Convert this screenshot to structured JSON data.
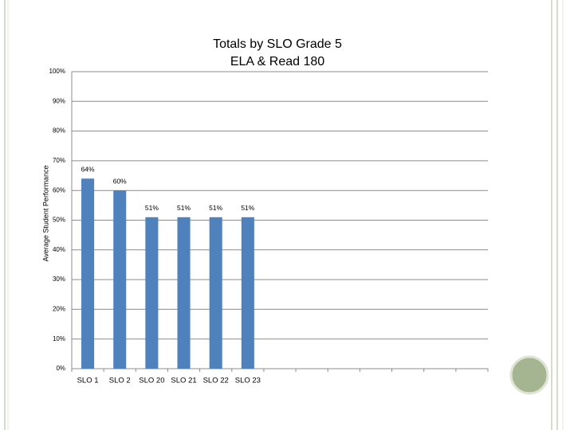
{
  "chart_data": {
    "type": "bar",
    "title": [
      "Totals by SLO  Grade 5",
      "ELA & Read 180"
    ],
    "y_axis_label": "Average Student Performance",
    "categories": [
      "SLO 1",
      "SLO 2",
      "SLO 20",
      "SLO 21",
      "SLO 22",
      "SLO 23",
      null,
      null,
      null,
      null,
      null,
      null,
      null
    ],
    "values": [
      64,
      60,
      51,
      51,
      51,
      51,
      null,
      null,
      null,
      null,
      null,
      null,
      null
    ],
    "value_labels": [
      "64%",
      "60%",
      "51%",
      "51%",
      "51%",
      "51%",
      null,
      null,
      null,
      null,
      null,
      null,
      null
    ],
    "color": "#4f81bd",
    "ylim": [
      0,
      100
    ],
    "yticks": [
      {
        "value": 0,
        "label": "0%"
      },
      {
        "value": 10,
        "label": "10%"
      },
      {
        "value": 20,
        "label": "20%"
      },
      {
        "value": 30,
        "label": "30%"
      },
      {
        "value": 40,
        "label": "40%"
      },
      {
        "value": 50,
        "label": "50%"
      },
      {
        "value": 60,
        "label": "60%"
      },
      {
        "value": 70,
        "label": "70%"
      },
      {
        "value": 80,
        "label": "80%"
      },
      {
        "value": 90,
        "label": "90%"
      },
      {
        "value": 100,
        "label": "100%"
      }
    ],
    "grid": true
  }
}
